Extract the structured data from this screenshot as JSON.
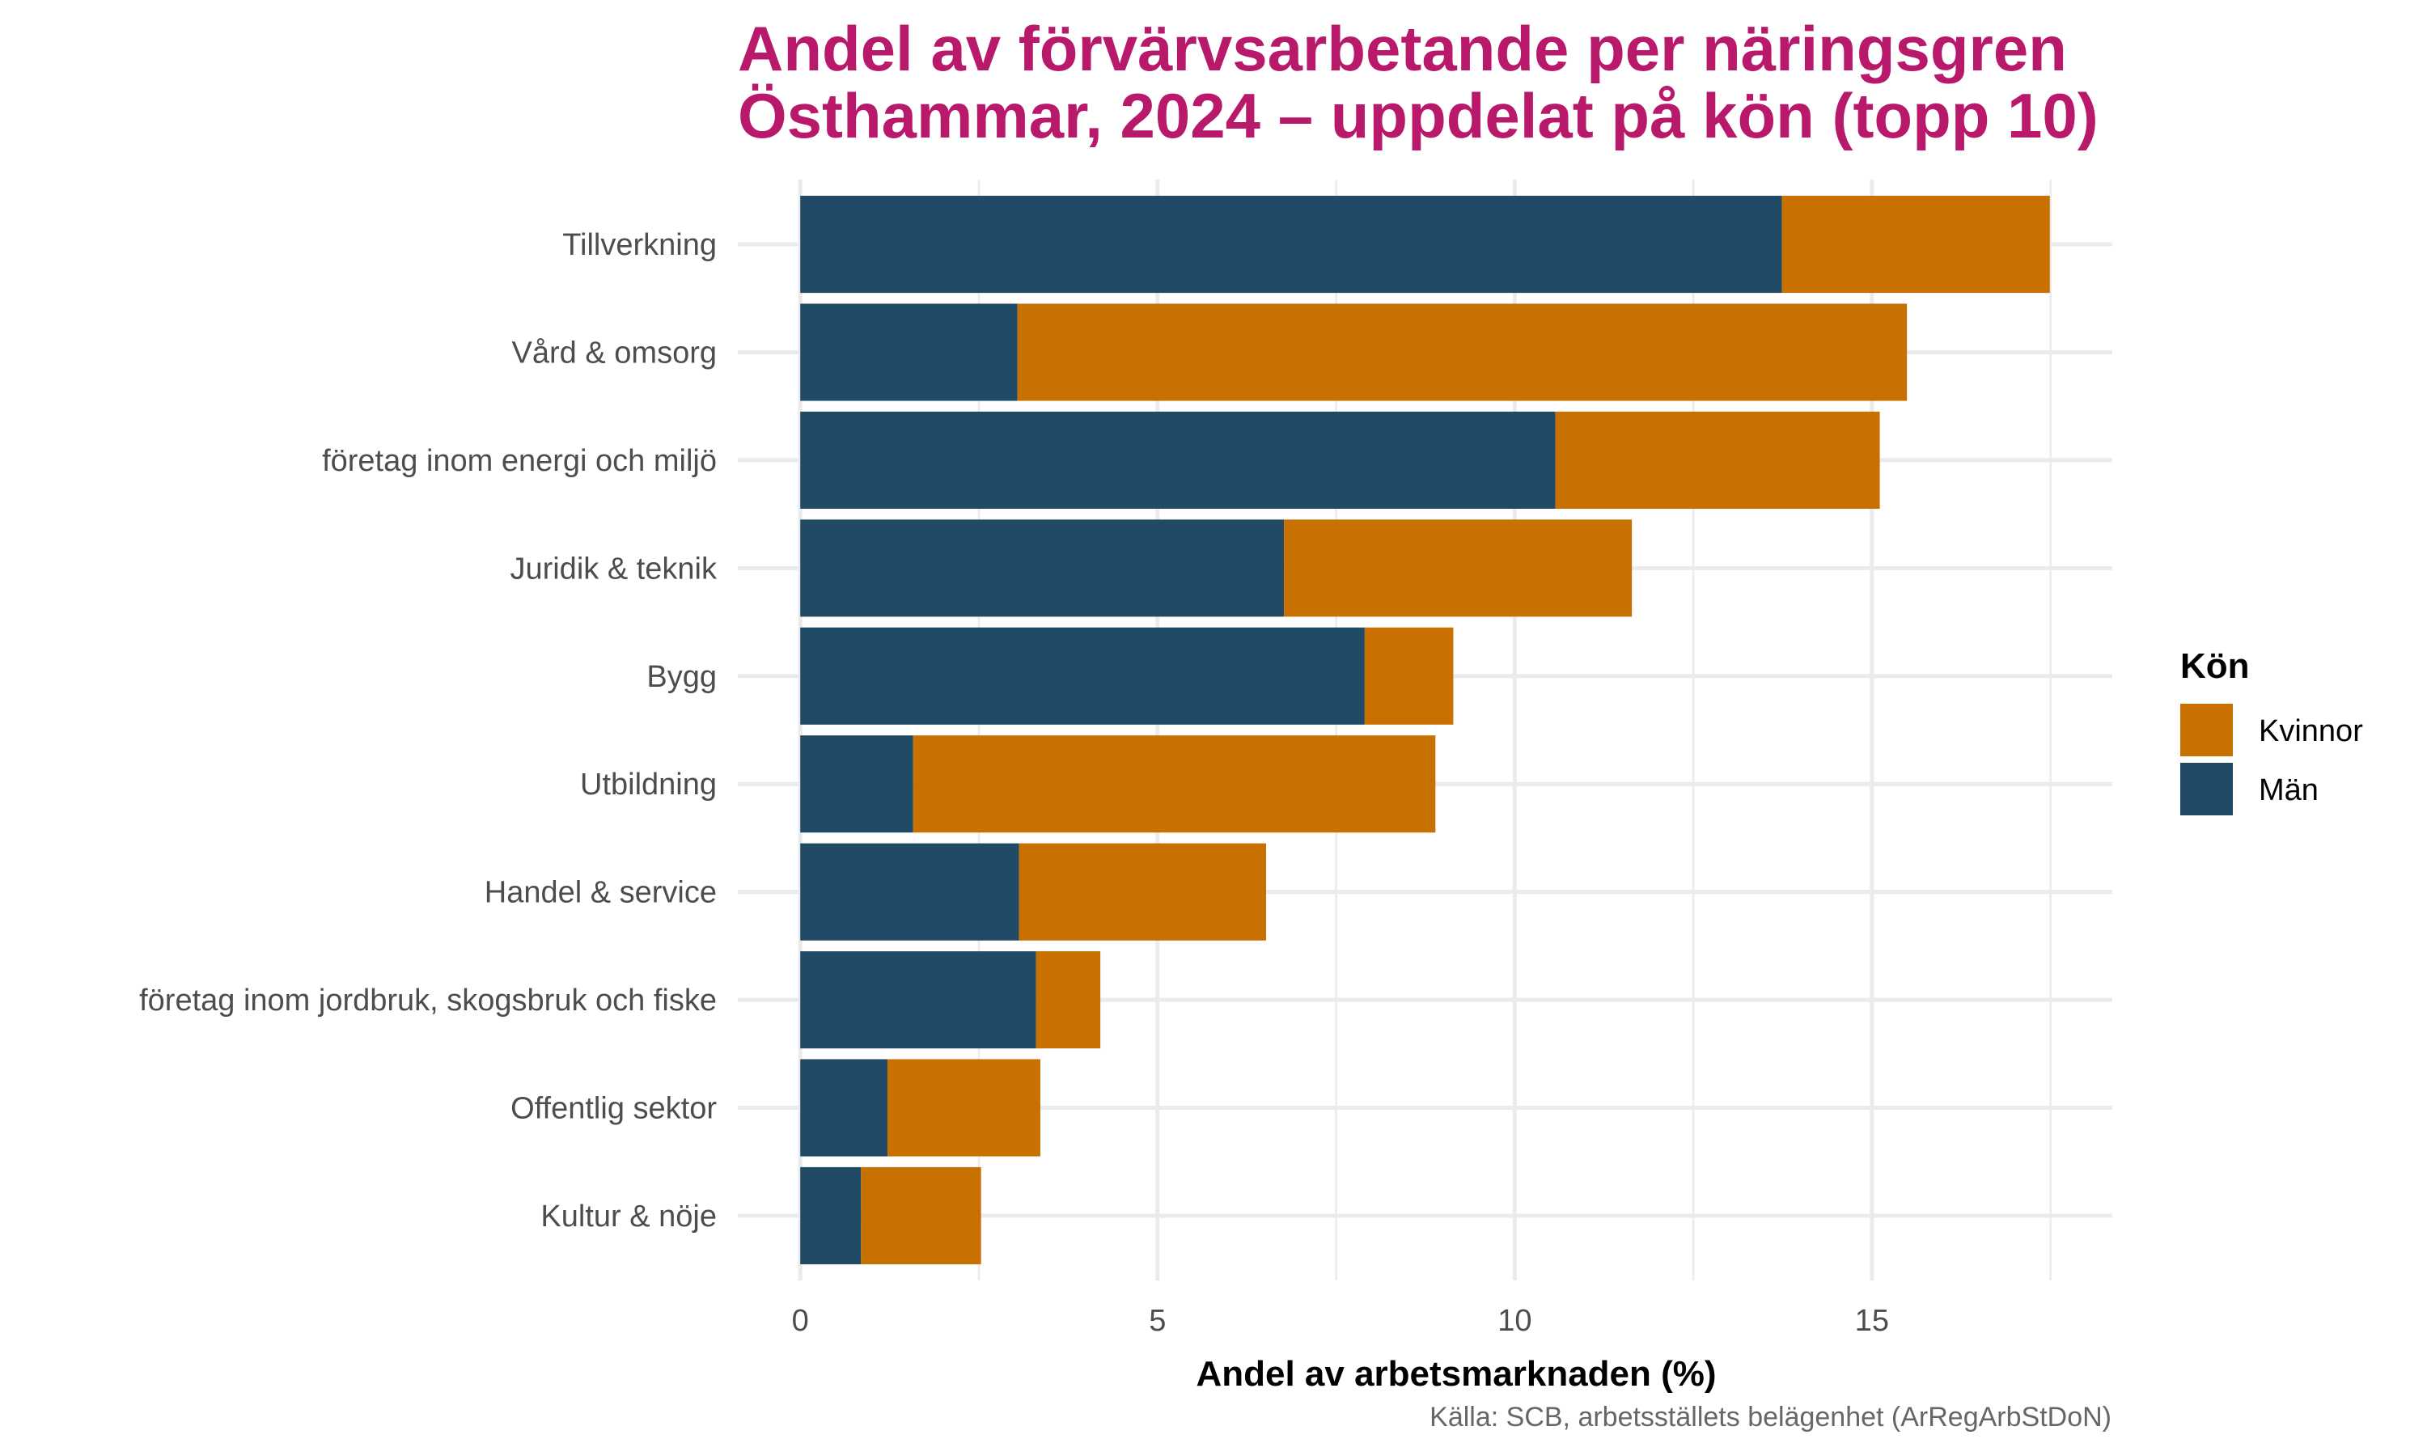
{
  "chart_data": {
    "type": "bar",
    "orientation": "horizontal",
    "stacked": true,
    "title": "Andel av förvärvsarbetande per näringsgren",
    "subtitle": "Östhammar, 2024 – uppdelat på kön (topp 10)",
    "xlabel": "Andel av arbetsmarknaden (%)",
    "ylabel": "",
    "caption": "Källa: SCB, arbetsställets belägenhet (ArRegArbStDoN)",
    "xlim": [
      0,
      17.49
    ],
    "xticks": [
      0,
      5,
      10,
      15
    ],
    "xtick_labels": [
      "0",
      "5",
      "10",
      "15"
    ],
    "grid": true,
    "categories": [
      "Tillverkning",
      "Vård & omsorg",
      "företag inom energi och miljö",
      "Juridik & teknik",
      "Bygg",
      "Utbildning",
      "Handel & service",
      "företag inom jordbruk, skogsbruk och fiske",
      "Offentlig sektor",
      "Kultur & nöje"
    ],
    "series": [
      {
        "name": "Män",
        "color": "#204A66",
        "values": [
          13.74,
          3.04,
          10.57,
          6.77,
          7.9,
          1.58,
          3.06,
          3.3,
          1.22,
          0.85
        ]
      },
      {
        "name": "Kvinnor",
        "color": "#C87000",
        "values": [
          3.75,
          12.45,
          4.54,
          4.87,
          1.24,
          7.31,
          3.46,
          0.9,
          2.14,
          1.68
        ]
      }
    ],
    "legend": {
      "title": "Kön",
      "position": "right",
      "entries": [
        {
          "label": "Kvinnor",
          "color": "#C87000"
        },
        {
          "label": "Män",
          "color": "#204A66"
        }
      ]
    }
  },
  "colors": {
    "title": "#B8196B",
    "grid": "#EBEBEB",
    "axis_text": "#4D4D4D",
    "caption": "#666666"
  }
}
